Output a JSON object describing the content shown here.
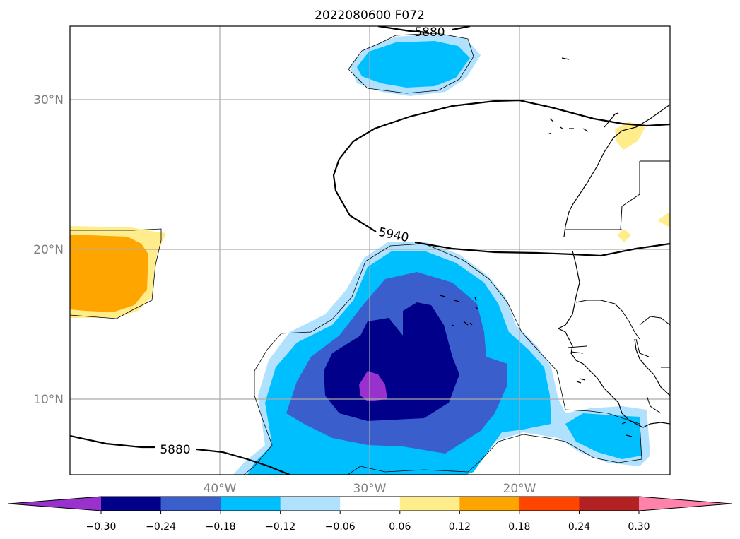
{
  "title": "2022080600 F072",
  "map": {
    "region": "Eastern tropical Atlantic / West Africa",
    "lat_labels": [
      "30°N",
      "20°N",
      "10°N"
    ],
    "lon_labels": [
      "40°W",
      "30°W",
      "20°W"
    ],
    "gridlines": true,
    "contour_labels": [
      "5880",
      "5940",
      "5880"
    ],
    "contour_levels": [
      5880,
      5940
    ],
    "contour_color": "#000000"
  },
  "colorbar": {
    "orientation": "horizontal",
    "extend": "both",
    "tick_labels": [
      "−0.30",
      "−0.24",
      "−0.18",
      "−0.12",
      "−0.06",
      "0.06",
      "0.12",
      "0.18",
      "0.24",
      "0.30"
    ],
    "bin_colors": [
      "#9932cc",
      "#00008b",
      "#3a5fcd",
      "#00bfff",
      "#b0e2ff",
      "#ffffff",
      "#ffec8b",
      "#ffa500",
      "#ff4500",
      "#b22222",
      "#ff82ab"
    ]
  },
  "colors": {
    "grid": "#aaaaaa",
    "frame": "#000000",
    "label": "#808080"
  }
}
